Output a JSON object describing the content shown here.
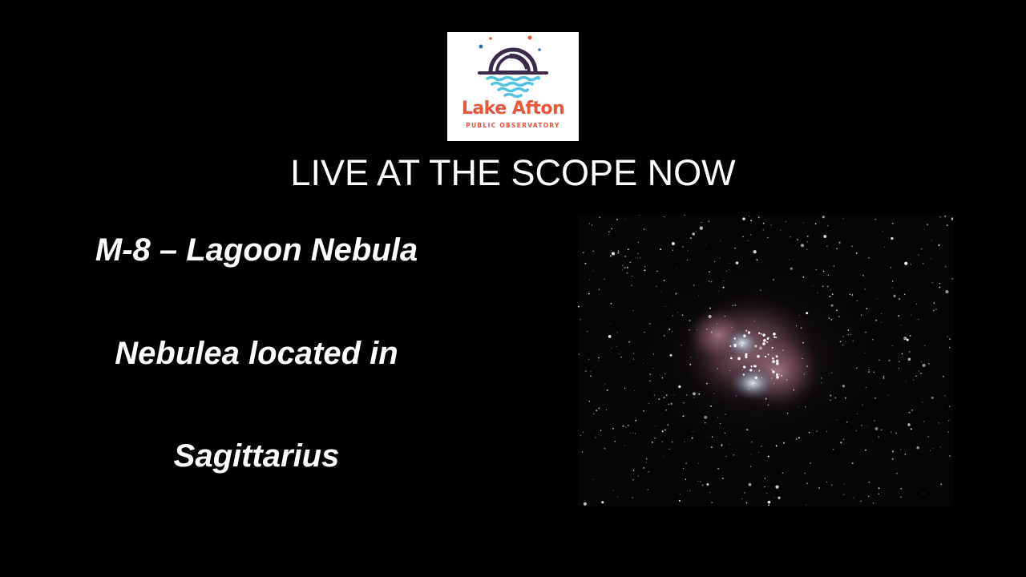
{
  "logo": {
    "name": "Lake Afton",
    "subtitle": "PUBLIC OBSERVATORY",
    "colors": {
      "primary": "#e6573b",
      "dome": "#3b2a4a",
      "water": "#4fc3e0",
      "dot_blue": "#3a6fb5",
      "dot_orange": "#e6573b"
    }
  },
  "headline": "LIVE AT THE SCOPE NOW",
  "object": {
    "line1": "M-8 – Lagoon Nebula",
    "line2": "Nebulea located in",
    "line3": "Sagittarius"
  },
  "photo": {
    "subject": "lagoon-nebula-photo"
  },
  "colors": {
    "background": "#000000",
    "text": "#ffffff"
  }
}
